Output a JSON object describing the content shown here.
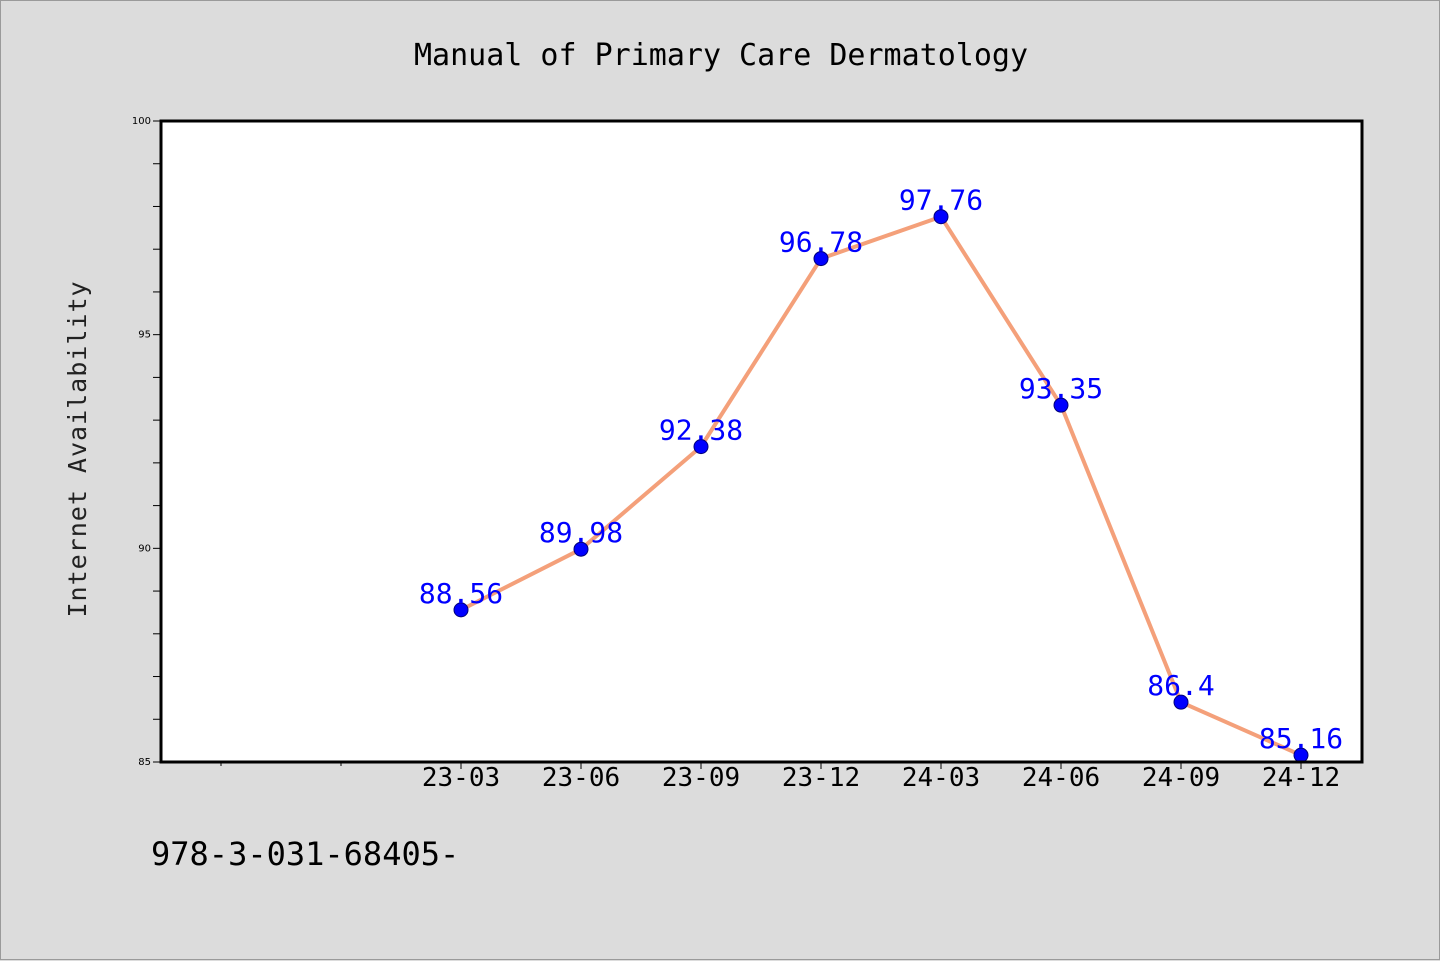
{
  "chart_data": {
    "type": "line",
    "title": "Manual of Primary Care Dermatology",
    "ylabel": "Internet Availability",
    "xlabel": "",
    "categories": [
      "23-03",
      "23-06",
      "23-09",
      "23-12",
      "24-03",
      "24-06",
      "24-09",
      "24-12"
    ],
    "series": [
      {
        "values": [
          88.56,
          89.98,
          92.38,
          96.78,
          97.76,
          93.35,
          86.4,
          85.16
        ]
      }
    ],
    "data_labels": [
      "88.56",
      "89.98",
      "92.38",
      "96.78",
      "97.76",
      "93.35",
      "86.4",
      "85.16"
    ],
    "ylim": [
      85,
      100
    ],
    "yticks": [
      85,
      90,
      95,
      100
    ],
    "ytick_labels": [
      "85",
      "90",
      "95",
      "100"
    ],
    "y_minor_step": 1,
    "x_leading_empty_slots": 2,
    "grid": false,
    "colors": {
      "line": "#f4a07a",
      "marker": "#0000ff",
      "label": "#0000ff",
      "background": "#dcdcdc",
      "plot_background": "#ffffff"
    },
    "footer_text": "978-3-031-68405-"
  }
}
